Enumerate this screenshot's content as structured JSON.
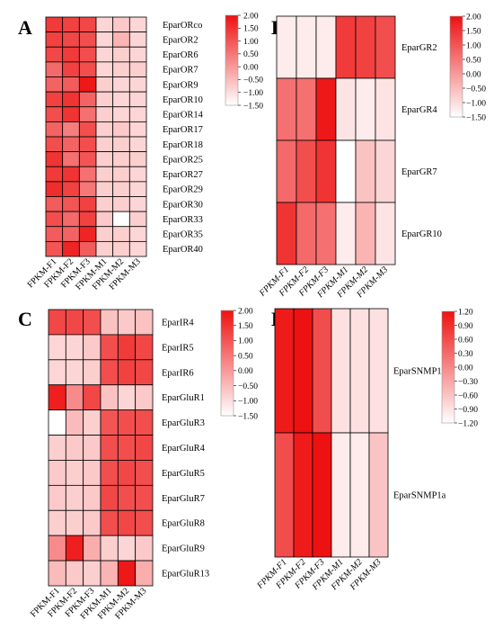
{
  "colors": {
    "high": "#ee1111",
    "mid": "#ffffff",
    "grid": "#000000"
  },
  "chart_data": [
    {
      "type": "heatmap",
      "panel": "A",
      "columns": [
        "FPKM-F1",
        "FPKM-F2",
        "FPKM-F3",
        "FPKM-M1",
        "FPKM-M2",
        "FPKM-M3"
      ],
      "rows": [
        "EparORco",
        "EparOR2",
        "EparOR6",
        "EparOR7",
        "EparOR9",
        "EparOR10",
        "EparOR14",
        "EparOR17",
        "EparOR18",
        "EparOR25",
        "EparOR27",
        "EparOR29",
        "EparOR30",
        "EparOR33",
        "EparOR35",
        "EparOR40"
      ],
      "values": [
        [
          1.4,
          1.3,
          1.2,
          -0.9,
          -0.7,
          -0.9
        ],
        [
          1.3,
          1.2,
          1.1,
          -0.9,
          -0.4,
          -0.9
        ],
        [
          1.2,
          1.4,
          1.1,
          -0.9,
          -0.8,
          -0.9
        ],
        [
          0.7,
          1.3,
          1.1,
          -0.9,
          -0.8,
          -0.8
        ],
        [
          0.8,
          0.9,
          1.9,
          -0.8,
          -0.9,
          -0.9
        ],
        [
          1.3,
          1.5,
          0.8,
          -0.8,
          -0.9,
          -0.9
        ],
        [
          1.1,
          1.5,
          0.6,
          -0.8,
          -0.9,
          -0.9
        ],
        [
          0.8,
          0.4,
          1.1,
          -0.8,
          -0.7,
          -0.9
        ],
        [
          1.1,
          0.8,
          1.1,
          -0.8,
          -0.8,
          -0.9
        ],
        [
          1.5,
          0.6,
          1.0,
          -0.8,
          -0.8,
          -0.8
        ],
        [
          1.4,
          1.5,
          0.6,
          -0.8,
          -0.8,
          -0.9
        ],
        [
          1.6,
          1.3,
          0.5,
          -0.8,
          -0.8,
          -0.9
        ],
        [
          0.9,
          1.0,
          1.3,
          -0.8,
          -0.8,
          -0.9
        ],
        [
          1.1,
          0.7,
          1.3,
          -0.7,
          -1.5,
          -0.8
        ],
        [
          0.9,
          0.8,
          1.7,
          -0.8,
          -0.8,
          -0.9
        ],
        [
          1.0,
          1.7,
          0.9,
          -0.8,
          -0.8,
          -0.9
        ]
      ],
      "scale_ticks": [
        "2.00",
        "1.50",
        "1.00",
        "0.50",
        "0.00",
        "−0.50",
        "−1.00",
        "−1.50"
      ],
      "range": [
        -1.5,
        2.0
      ]
    },
    {
      "type": "heatmap",
      "panel": "B",
      "columns": [
        "FPKM-F1",
        "FPKM-F2",
        "FPKM-F3",
        "FPKM-M1",
        "FPKM-M2",
        "FPKM-M3"
      ],
      "rows": [
        "EparGR2",
        "EparGR4",
        "EparGR7",
        "EparGR10"
      ],
      "values": [
        [
          -1.2,
          -1.2,
          -1.2,
          1.4,
          1.3,
          1.1
        ],
        [
          0.6,
          0.6,
          1.9,
          -1.1,
          -1.2,
          -1.1
        ],
        [
          0.7,
          1.1,
          1.5,
          -1.5,
          -0.6,
          -0.9
        ],
        [
          1.5,
          0.7,
          0.6,
          -1.2,
          -0.4,
          -1.1
        ]
      ],
      "scale_ticks": [
        "2.00",
        "1.50",
        "1.00",
        "0.50",
        "0.00",
        "−0.50",
        "−1.00",
        "−1.50"
      ],
      "range": [
        -1.5,
        2.0
      ]
    },
    {
      "type": "heatmap",
      "panel": "C",
      "columns": [
        "FPKM-F1",
        "FPKM-F2",
        "FPKM-F3",
        "FPKM-M1",
        "FPKM-M2",
        "FPKM-M3"
      ],
      "rows": [
        "EparIR4",
        "EparIR5",
        "EparIR6",
        "EparGluR1",
        "EparGluR3",
        "EparGluR4",
        "EparGluR5",
        "EparGluR7",
        "EparGluR8",
        "EparGluR9",
        "EparGluR13"
      ],
      "values": [
        [
          1.2,
          1.2,
          1.1,
          -0.6,
          -0.7,
          -0.6
        ],
        [
          -0.9,
          -0.9,
          -0.7,
          1.1,
          1.4,
          1.2
        ],
        [
          -0.9,
          -0.9,
          -0.8,
          1.1,
          1.3,
          1.2
        ],
        [
          1.8,
          0.2,
          1.2,
          -0.6,
          -0.9,
          -0.7
        ],
        [
          -1.5,
          -0.5,
          -0.8,
          1.0,
          1.1,
          1.1
        ],
        [
          -0.8,
          -0.7,
          -0.7,
          1.1,
          1.1,
          1.2
        ],
        [
          -0.7,
          -0.8,
          -0.7,
          1.1,
          1.2,
          1.1
        ],
        [
          -0.7,
          -0.8,
          -0.7,
          1.2,
          1.1,
          1.1
        ],
        [
          -0.8,
          -0.8,
          -0.7,
          1.1,
          1.2,
          1.1
        ],
        [
          0.2,
          1.8,
          -0.3,
          -0.8,
          -0.9,
          -0.7
        ],
        [
          -0.5,
          -0.7,
          -0.8,
          -0.4,
          1.9,
          -0.3
        ]
      ],
      "scale_ticks": [
        "2.00",
        "1.50",
        "1.00",
        "0.50",
        "0.00",
        "−0.50",
        "−1.00",
        "−1.50"
      ],
      "range": [
        -1.5,
        2.0
      ]
    },
    {
      "type": "heatmap",
      "panel": "D",
      "columns": [
        "FPKM-F1",
        "FPKM-F2",
        "FPKM-F3",
        "FPKM-M1",
        "FPKM-M2",
        "FPKM-M3"
      ],
      "rows": [
        "EparSNMP1",
        "EparSNMP1a"
      ],
      "values": [
        [
          1.1,
          1.2,
          0.6,
          -0.9,
          -0.9,
          -0.9
        ],
        [
          0.6,
          1.1,
          1.2,
          -1.0,
          -1.0,
          -0.6
        ]
      ],
      "scale_ticks": [
        "1.20",
        "0.90",
        "0.60",
        "0.30",
        "0.00",
        "−0.30",
        "−0.60",
        "−0.90",
        "−1.20"
      ],
      "range": [
        -1.2,
        1.2
      ]
    }
  ]
}
